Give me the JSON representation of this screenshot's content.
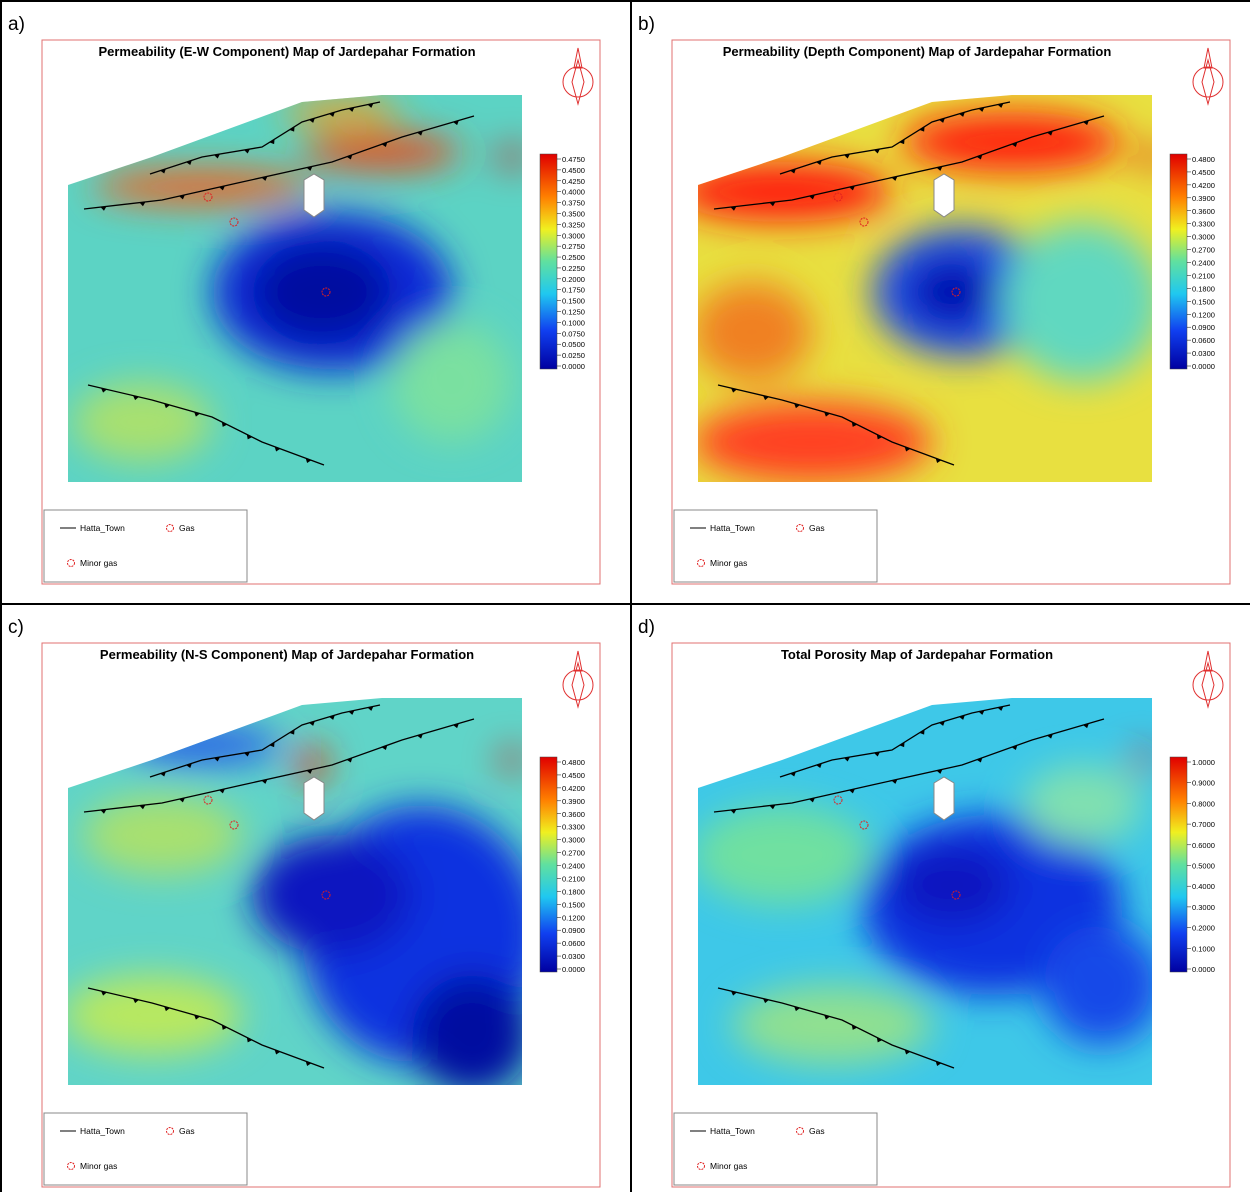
{
  "panels": [
    {
      "label": "a)",
      "title": "Permeability (E-W Component) Map of Jardepahar Formation",
      "colorbar": [
        "0.4750",
        "0.4500",
        "0.4250",
        "0.4000",
        "0.3750",
        "0.3500",
        "0.3250",
        "0.3000",
        "0.2750",
        "0.2500",
        "0.2250",
        "0.2000",
        "0.1750",
        "0.1500",
        "0.1250",
        "0.1000",
        "0.0750",
        "0.0500",
        "0.0250",
        "0.0000"
      ],
      "legend": [
        "Hatta_Town",
        "Gas",
        "Minor gas"
      ]
    },
    {
      "label": "b)",
      "title": "Permeability (Depth Component) Map of Jardepahar Formation",
      "colorbar": [
        "0.4800",
        "0.4500",
        "0.4200",
        "0.3900",
        "0.3600",
        "0.3300",
        "0.3000",
        "0.2700",
        "0.2400",
        "0.2100",
        "0.1800",
        "0.1500",
        "0.1200",
        "0.0900",
        "0.0600",
        "0.0300",
        "0.0000"
      ],
      "legend": [
        "Hatta_Town",
        "Gas",
        "Minor gas"
      ]
    },
    {
      "label": "c)",
      "title": "Permeability (N-S Component) Map of Jardepahar Formation",
      "colorbar": [
        "0.4800",
        "0.4500",
        "0.4200",
        "0.3900",
        "0.3600",
        "0.3300",
        "0.3000",
        "0.2700",
        "0.2400",
        "0.2100",
        "0.1800",
        "0.1500",
        "0.1200",
        "0.0900",
        "0.0600",
        "0.0300",
        "0.0000"
      ],
      "legend": [
        "Hatta_Town",
        "Gas",
        "Minor gas"
      ]
    },
    {
      "label": "d)",
      "title": "Total Porosity Map of Jardepahar Formation",
      "colorbar": [
        "1.0000",
        "0.9000",
        "0.8000",
        "0.7000",
        "0.6000",
        "0.5000",
        "0.4000",
        "0.3000",
        "0.2000",
        "0.1000",
        "0.0000"
      ],
      "legend": [
        "Hatta_Town",
        "Gas",
        "Minor gas"
      ]
    }
  ]
}
